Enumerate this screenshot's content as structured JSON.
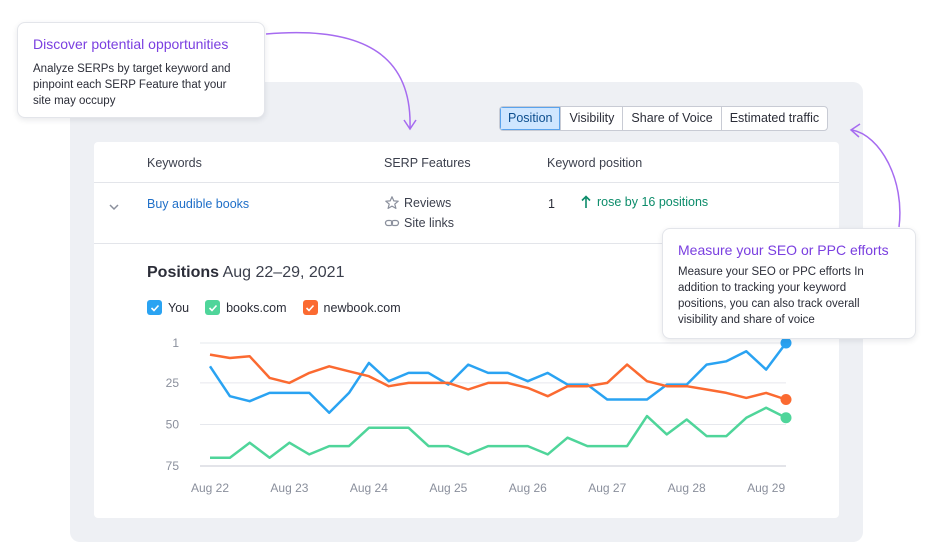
{
  "tabs": [
    {
      "label": "Position",
      "active": true
    },
    {
      "label": "Visibility",
      "active": false
    },
    {
      "label": "Share of Voice",
      "active": false
    },
    {
      "label": "Estimated traffic",
      "active": false
    }
  ],
  "table": {
    "headers": [
      "Keywords",
      "SERP Features",
      "Keyword position"
    ],
    "row": {
      "keyword": "Buy audible books",
      "features": [
        {
          "label": "Reviews",
          "icon": "star-icon"
        },
        {
          "label": "Site links",
          "icon": "link-icon"
        }
      ],
      "position": "1",
      "change": "rose by 16 positions"
    }
  },
  "chart_header": {
    "title": "Positions",
    "date_range": "Aug 22–29, 2021"
  },
  "legend": [
    {
      "label": "You",
      "color": "#2aa3f2"
    },
    {
      "label": "books.com",
      "color": "#4fd59a"
    },
    {
      "label": "newbook.com",
      "color": "#fb6a31"
    }
  ],
  "chart_data": {
    "type": "line",
    "title": "Positions",
    "ylim": [
      1,
      75
    ],
    "y_inverted": true,
    "y_ticks": [
      1,
      25,
      50,
      75
    ],
    "x_ticks": [
      "Aug 22",
      "Aug 23",
      "Aug 24",
      "Aug 25",
      "Aug 26",
      "Aug 27",
      "Aug 28",
      "Aug 29"
    ],
    "x": [
      0,
      0.25,
      0.5,
      0.75,
      1,
      1.25,
      1.5,
      1.75,
      2,
      2.25,
      2.5,
      2.75,
      3,
      3.25,
      3.5,
      3.75,
      4,
      4.25,
      4.5,
      4.75,
      5,
      5.25,
      5.5,
      5.75,
      6,
      6.25,
      6.5,
      6.75,
      7,
      7.25
    ],
    "series": [
      {
        "name": "You",
        "color": "#2aa3f2",
        "values": [
          15,
          33,
          36,
          31,
          31,
          31,
          43,
          31,
          13,
          24,
          19,
          19,
          26,
          14,
          19,
          19,
          24,
          19,
          26,
          26,
          35,
          35,
          35,
          26,
          26,
          14,
          12,
          6,
          17,
          1
        ]
      },
      {
        "name": "newbook.com",
        "color": "#fb6a31",
        "values": [
          8,
          10,
          9,
          22,
          25,
          19,
          15,
          18,
          21,
          27,
          25,
          25,
          25,
          29,
          25,
          25,
          28,
          33,
          27,
          27,
          25,
          14,
          24,
          27,
          27,
          29,
          31,
          34,
          31,
          35
        ]
      },
      {
        "name": "books.com",
        "color": "#4fd59a",
        "values": [
          70,
          70,
          61,
          70,
          61,
          68,
          63,
          63,
          52,
          52,
          52,
          63,
          63,
          68,
          63,
          63,
          63,
          68,
          58,
          63,
          63,
          63,
          45,
          56,
          47,
          57,
          57,
          46,
          40,
          46
        ]
      }
    ]
  },
  "tooltips": [
    {
      "title": "Discover potential opportunities",
      "body": "Analyze SERPs by target keyword and\npinpoint each SERP Feature that your\nsite may occupy"
    },
    {
      "title": "Measure your SEO or PPC efforts",
      "body": "Measure your SEO or PPC efforts In\naddition to tracking your keyword\npositions, you can also track overall\nvisibility and share of voice"
    }
  ]
}
